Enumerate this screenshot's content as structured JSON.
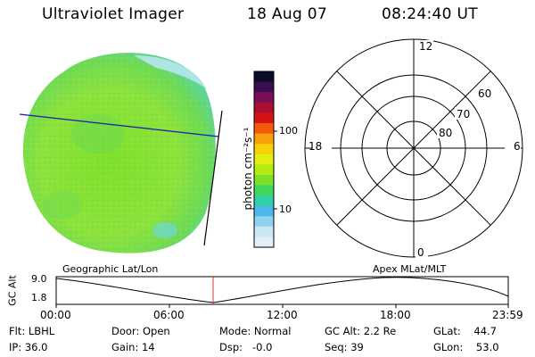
{
  "header": {
    "instrument": "Ultraviolet Imager",
    "date": "18 Aug 07",
    "time": "08:24:40 UT"
  },
  "colorbar": {
    "unit_label": "photon cm⁻²s⁻¹",
    "ticks": [
      "100",
      "10"
    ],
    "colors": [
      "#0b0b2a",
      "#3a0d52",
      "#7a0f55",
      "#a80f30",
      "#d41414",
      "#f05a0a",
      "#f7a00a",
      "#f6d20b",
      "#e2ef0f",
      "#b6ea14",
      "#7fe02a",
      "#42d65a",
      "#2fd0a8",
      "#4cb8e8",
      "#8fd3f0",
      "#c9e8f4",
      "#e3f1f6"
    ]
  },
  "image": {
    "colors": {
      "disk": "#88e23a",
      "disk_alt": "#54dc5a",
      "edge": "#9cdce8",
      "grid_line": "#1a1ab0",
      "terminator": "#000000"
    }
  },
  "polar": {
    "labels": {
      "top": "12",
      "left": "18",
      "right": "6",
      "bottom": "0"
    },
    "lat_labels": [
      "60",
      "70",
      "80"
    ]
  },
  "alt_strip": {
    "ylabel": "GC Alt",
    "y_ticks": [
      "9.0",
      "1.8"
    ],
    "left_title": "Geographic Lat/Lon",
    "right_title": "Apex MLat/MLT",
    "x_ticks": [
      "00:00",
      "06:00",
      "12:00",
      "18:00",
      "23:59"
    ],
    "marker_color": "#e03030"
  },
  "info": {
    "filter": "Flt: LBHL",
    "ip": "IP: 36.0",
    "door": "Door: Open",
    "gain": "Gain: 14",
    "mode": "Mode: Normal",
    "dsp": "Dsp:   -0.0",
    "gc_alt": "GC Alt: 2.2 Re",
    "seq": "Seq: 39",
    "glat": "GLat:    44.7",
    "glon": "GLon:    53.0"
  }
}
